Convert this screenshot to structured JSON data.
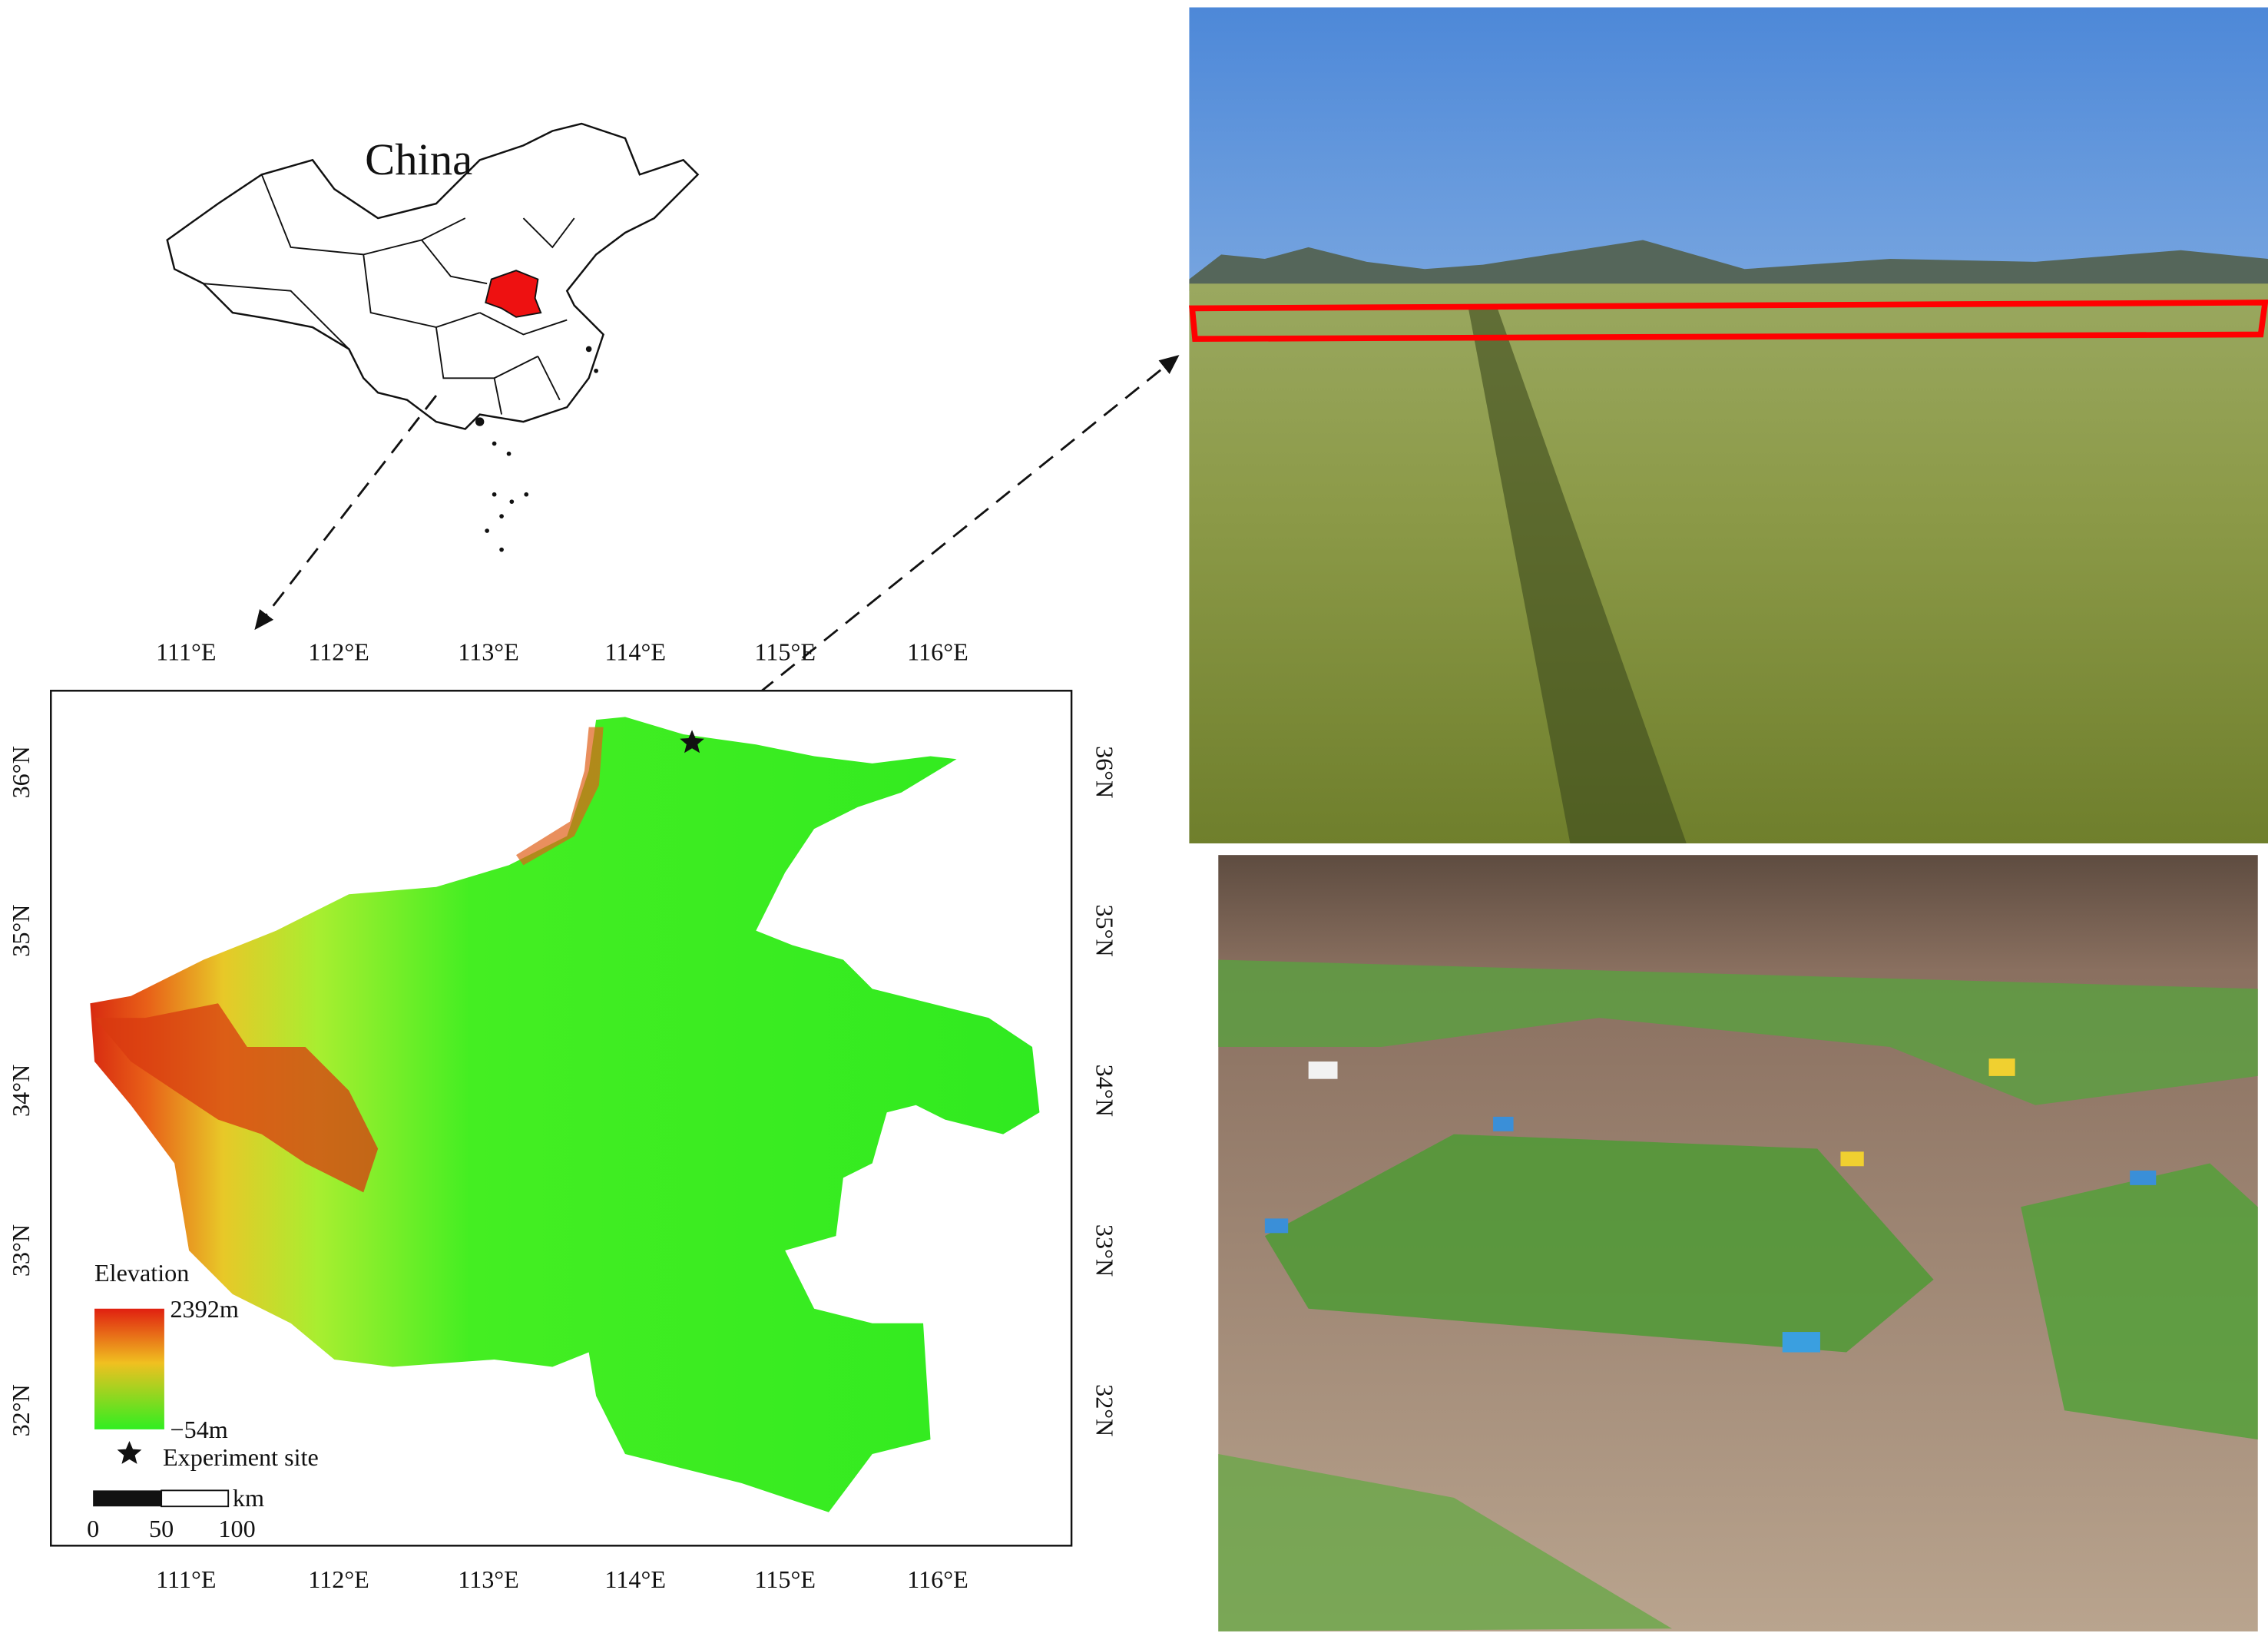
{
  "inset": {
    "label": "China"
  },
  "map": {
    "lon_labels": [
      "111°E",
      "112°E",
      "113°E",
      "114°E",
      "115°E",
      "116°E"
    ],
    "lat_labels": [
      "36°N",
      "35°N",
      "34°N",
      "33°N",
      "32°N"
    ],
    "legend": {
      "title": "Elevation",
      "max": "2392m",
      "min": "−54m",
      "site": "Experiment site"
    },
    "scale_bar": {
      "unit": "km",
      "labels": [
        "0",
        "50",
        "100"
      ]
    }
  }
}
